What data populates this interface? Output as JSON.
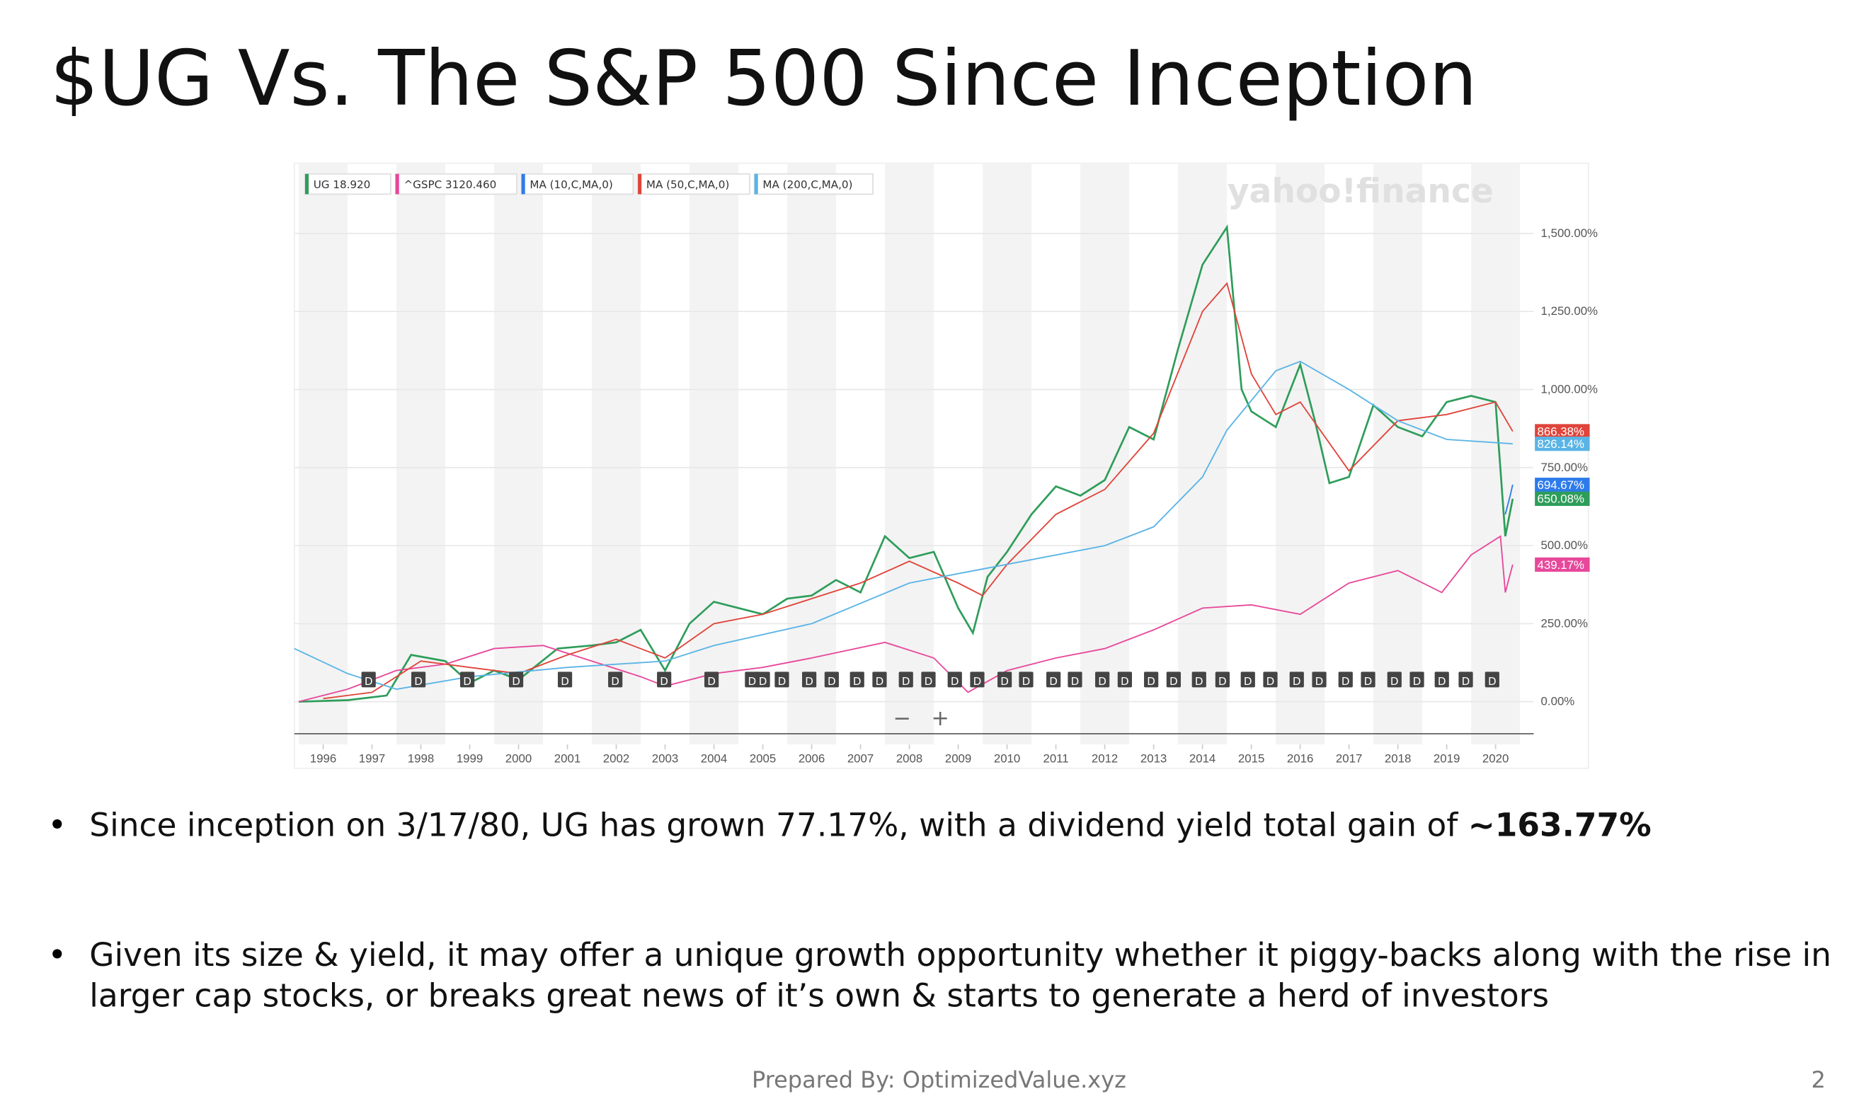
{
  "title": "$UG Vs. The S&P 500 Since Inception",
  "chart_data": {
    "type": "line",
    "watermark": "yahoo!finance",
    "zoom_controls": [
      "−",
      "+"
    ],
    "xlim": [
      1995.41,
      2020.78
    ],
    "xticks": [
      1996,
      1997,
      1998,
      1999,
      2000,
      2001,
      2002,
      2003,
      2004,
      2005,
      2006,
      2007,
      2008,
      2009,
      2010,
      2011,
      2012,
      2013,
      2014,
      2015,
      2016,
      2017,
      2018,
      2019,
      2020
    ],
    "ylim": [
      -137,
      1725
    ],
    "yticks": [
      {
        "value": 0,
        "label": "0.00%"
      },
      {
        "value": 250,
        "label": "250.00%"
      },
      {
        "value": 500,
        "label": "500.00%"
      },
      {
        "value": 750,
        "label": "750.00%"
      },
      {
        "value": 1000,
        "label": "1,000.00%"
      },
      {
        "value": 1250,
        "label": "1,250.00%"
      },
      {
        "value": 1500,
        "label": "1,500.00%"
      }
    ],
    "grid": true,
    "series": [
      {
        "name": "UG 18.920",
        "color": "#2e9d5a",
        "x": [
          1995.5,
          1996.5,
          1997.3,
          1997.8,
          1998.5,
          1999,
          1999.5,
          2000,
          2000.8,
          2001.5,
          2002,
          2002.5,
          2003,
          2003.5,
          2004,
          2004.5,
          2005,
          2005.5,
          2006,
          2006.5,
          2007,
          2007.5,
          2008,
          2008.5,
          2009,
          2009.3,
          2009.6,
          2010,
          2010.5,
          2011,
          2011.5,
          2012,
          2012.5,
          2013,
          2013.5,
          2014,
          2014.5,
          2014.8,
          2015,
          2015.5,
          2016,
          2016.3,
          2016.6,
          2017,
          2017.5,
          2018,
          2018.5,
          2019,
          2019.5,
          2020,
          2020.2,
          2020.35
        ],
        "values": [
          0,
          5,
          20,
          150,
          130,
          60,
          100,
          70,
          170,
          180,
          190,
          230,
          100,
          250,
          320,
          300,
          280,
          330,
          340,
          390,
          350,
          530,
          460,
          480,
          300,
          220,
          400,
          480,
          600,
          690,
          660,
          710,
          880,
          840,
          1130,
          1400,
          1520,
          1000,
          930,
          880,
          1080,
          900,
          700,
          720,
          950,
          880,
          850,
          960,
          980,
          960,
          530,
          650
        ]
      },
      {
        "name": "^GSPC 3120.460",
        "color": "#e7489b",
        "x": [
          1995.5,
          1996.5,
          1997.5,
          1998.5,
          1999.5,
          2000.5,
          2001.5,
          2002.5,
          2003,
          2004,
          2005,
          2006,
          2007.5,
          2008.5,
          2009.2,
          2010,
          2011,
          2012,
          2013,
          2014,
          2015,
          2016,
          2017,
          2018,
          2018.9,
          2019.5,
          2020.1,
          2020.2,
          2020.35
        ],
        "values": [
          0,
          40,
          100,
          120,
          170,
          180,
          130,
          80,
          50,
          90,
          110,
          140,
          190,
          140,
          30,
          100,
          140,
          170,
          230,
          300,
          310,
          280,
          380,
          420,
          350,
          470,
          530,
          350,
          439
        ]
      },
      {
        "name": "MA (10,C,MA,0)",
        "color": "#2d7bea",
        "x": [
          2020.2,
          2020.3,
          2020.35
        ],
        "values": [
          600,
          660,
          695
        ]
      },
      {
        "name": "MA (50,C,MA,0)",
        "color": "#e0443a",
        "x": [
          1996,
          1997,
          1998,
          1999,
          2000,
          2001,
          2002,
          2003,
          2004,
          2005,
          2006,
          2007,
          2008,
          2009,
          2009.5,
          2010,
          2011,
          2012,
          2013,
          2014,
          2014.5,
          2015,
          2015.5,
          2016,
          2016.5,
          2017,
          2018,
          2019,
          2020,
          2020.35
        ],
        "values": [
          10,
          30,
          130,
          110,
          90,
          150,
          200,
          140,
          250,
          280,
          330,
          380,
          450,
          380,
          340,
          440,
          600,
          680,
          860,
          1250,
          1340,
          1050,
          920,
          960,
          850,
          740,
          900,
          920,
          960,
          866
        ]
      },
      {
        "name": "MA (200,C,MA,0)",
        "color": "#5ab4e5",
        "x": [
          1995.41,
          1996.5,
          1997.5,
          1999,
          2001,
          2003,
          2004,
          2006,
          2008,
          2009,
          2010,
          2012,
          2013,
          2014,
          2014.5,
          2015.5,
          2016,
          2017,
          2018,
          2019,
          2020,
          2020.35
        ],
        "values": [
          170,
          90,
          40,
          80,
          110,
          130,
          180,
          250,
          380,
          410,
          440,
          500,
          560,
          720,
          870,
          1060,
          1090,
          1000,
          900,
          840,
          830,
          826
        ]
      }
    ],
    "end_labels": [
      {
        "value": 866.38,
        "label": "866.38%",
        "color": "#e0443a"
      },
      {
        "value": 826.14,
        "label": "826.14%",
        "color": "#5ab4e5"
      },
      {
        "value": 694.67,
        "label": "694.67%",
        "color": "#2d7bea"
      },
      {
        "value": 650.08,
        "label": "650.08%",
        "color": "#2e9d5a"
      },
      {
        "value": 439.17,
        "label": "439.17%",
        "color": "#e7489b"
      }
    ],
    "dividend_marker": "D",
    "dividend_marker_level": 69,
    "dividends_x": [
      1996.93,
      1997.95,
      1998.95,
      1999.95,
      2000.95,
      2001.98,
      2002.98,
      2003.95,
      2004.78,
      2005.0,
      2005.39,
      2005.95,
      2006.41,
      2006.93,
      2007.39,
      2007.93,
      2008.39,
      2008.93,
      2009.39,
      2009.95,
      2010.39,
      2010.95,
      2011.39,
      2011.95,
      2012.41,
      2012.95,
      2013.41,
      2013.93,
      2014.41,
      2014.93,
      2015.39,
      2015.93,
      2016.39,
      2016.93,
      2017.39,
      2017.93,
      2018.39,
      2018.9,
      2019.39,
      2019.93
    ]
  },
  "bullets": [
    [
      "Since inception on 3/17/80, UG has grown 77.17%, with a dividend yield total gain of ",
      "~163.77%"
    ],
    [
      "Given its size & yield, it may offer a unique growth opportunity whether it piggy-backs along with the rise in",
      "larger cap stocks, or breaks great news of it’s own & starts to generate a herd of investors"
    ]
  ],
  "bullet_symbol": "•",
  "footer": "Prepared By: OptimizedValue.xyz",
  "page_number": 2
}
